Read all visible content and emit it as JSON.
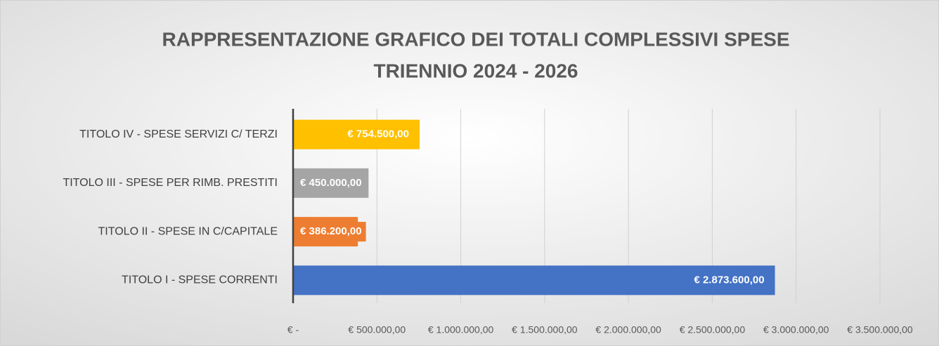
{
  "chart_data": {
    "type": "hbar",
    "title": [
      "RAPPRESENTAZIONE GRAFICO DEI TOTALI COMPLESSIVI SPESE",
      "TRIENNIO 2024 - 2026"
    ],
    "categories": [
      "TITOLO IV - SPESE SERVIZI C/ TERZI",
      "TITOLO III - SPESE PER RIMB. PRESTITI",
      "TITOLO II - SPESE IN C/CAPITALE",
      "TITOLO I - SPESE CORRENTI"
    ],
    "values": [
      754500,
      450000,
      386200,
      2873600
    ],
    "value_labels": [
      "€ 754.500,00",
      "€ 450.000,00",
      "€ 386.200,00",
      "€ 2.873.600,00"
    ],
    "colors": [
      "#ffc000",
      "#a5a5a5",
      "#ed7d31",
      "#4472c4"
    ],
    "xlim": [
      0,
      3500000
    ],
    "xticks": [
      {
        "value": 0,
        "label": "€ -"
      },
      {
        "value": 500000,
        "label": "€ 500.000,00"
      },
      {
        "value": 1000000,
        "label": "€ 1.000.000,00"
      },
      {
        "value": 1500000,
        "label": "€ 1.500.000,00"
      },
      {
        "value": 2000000,
        "label": "€ 2.000.000,00"
      },
      {
        "value": 2500000,
        "label": "€ 2.500.000,00"
      },
      {
        "value": 3000000,
        "label": "€ 3.000.000,00"
      },
      {
        "value": 3500000,
        "label": "€ 3.500.000,00"
      }
    ],
    "grid": true
  }
}
